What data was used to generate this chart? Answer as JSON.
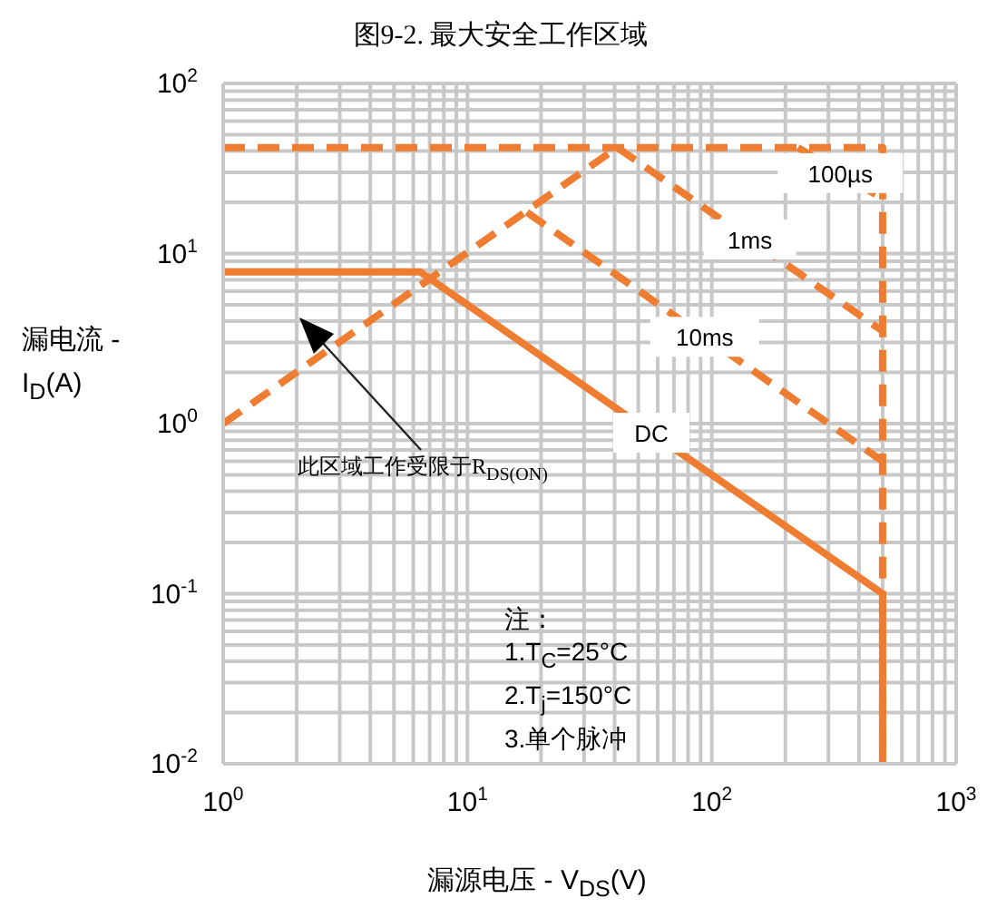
{
  "chart_data": {
    "type": "line",
    "title": "图9-2. 最大安全工作区域",
    "xlabel": "漏源电压 - V$_{DS}$(V)",
    "ylabel": "漏电流 - I$_{D}$(A)",
    "log": "xy",
    "grid": true,
    "marker": "none",
    "xlim": [
      1,
      1000
    ],
    "xticks": [
      {
        "value": 1,
        "label": "10$^{0}$"
      },
      {
        "value": 10,
        "label": "10$^{1}$"
      },
      {
        "value": 100,
        "label": "10$^{2}$"
      },
      {
        "value": 1000,
        "label": "10$^{3}$"
      }
    ],
    "ylim": [
      0.01,
      100
    ],
    "yticks": [
      {
        "value": 0.01,
        "label": "10$^{-2}$"
      },
      {
        "value": 0.1,
        "label": "10$^{-1}$"
      },
      {
        "value": 1,
        "label": "10$^{0}$"
      },
      {
        "value": 10,
        "label": "10$^{1}$"
      },
      {
        "value": 100,
        "label": "10$^{2}$"
      }
    ],
    "series": [
      {
        "name": "DC",
        "color": "#ee7d31",
        "line_style": "solid",
        "x": [
          1,
          6.4,
          500,
          500
        ],
        "values": [
          7.8,
          7.8,
          0.1,
          0.01
        ]
      },
      {
        "name": "10ms",
        "color": "#ee7d31",
        "line_style": "dashed",
        "x": [
          17.5,
          500
        ],
        "values": [
          17.5,
          0.6
        ]
      },
      {
        "name": "1ms",
        "color": "#ee7d31",
        "line_style": "dashed",
        "x": [
          41,
          500
        ],
        "values": [
          42,
          3.5
        ]
      },
      {
        "name": "100µs",
        "color": "#ee7d31",
        "line_style": "dashed",
        "x": [
          225,
          500
        ],
        "values": [
          42,
          21
        ]
      },
      {
        "color": "#ee7d31",
        "line_style": "dashed",
        "x": [
          1,
          41
        ],
        "values": [
          1,
          42
        ]
      },
      {
        "color": "#ee7d31",
        "line_style": "dashed",
        "x": [
          1,
          500,
          500
        ],
        "values": [
          42,
          42,
          0.01
        ]
      }
    ],
    "annotations": [
      "此区域工作受限于R$_{DS(ON)}$",
      "注：",
      "1.T$_{C}$=25°C",
      "2.T$_{j}$=150°C",
      "3.单个脉冲"
    ]
  }
}
